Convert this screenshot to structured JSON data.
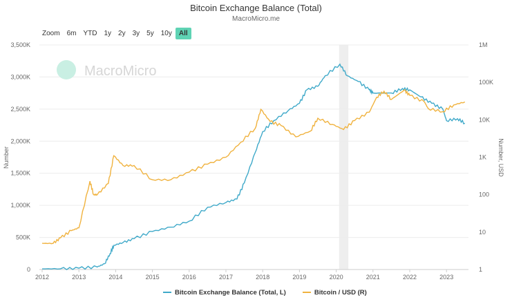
{
  "title": "Bitcoin Exchange Balance (Total)",
  "subtitle": "MacroMicro.me",
  "watermark": "MacroMicro",
  "zoom": {
    "label": "Zoom",
    "options": [
      "6m",
      "YTD",
      "1y",
      "2y",
      "3y",
      "5y",
      "10y",
      "All"
    ],
    "selected": "All"
  },
  "chart_data": {
    "type": "line",
    "title": "Bitcoin Exchange Balance (Total)",
    "ylabel": "Number",
    "y2label": "Number, USD",
    "xlim": [
      2011.93,
      2023.62
    ],
    "ylim": [
      0,
      3500000
    ],
    "y2lim": [
      1,
      1000000
    ],
    "y2scale": "log",
    "xticks": [
      "2012",
      "2013",
      "2014",
      "2015",
      "2016",
      "2017",
      "2018",
      "2019",
      "2020",
      "2021",
      "2022",
      "2023"
    ],
    "yticks": [
      "0",
      "500K",
      "1,000K",
      "1,500K",
      "2,000K",
      "2,500K",
      "3,000K",
      "3,500K"
    ],
    "y2ticks": [
      "1",
      "10",
      "100",
      "1K",
      "10K",
      "100K",
      "1M"
    ],
    "grid": true,
    "legend": "bottom",
    "shaded_band": [
      2020.08,
      2020.33
    ],
    "series": [
      {
        "name": "Bitcoin Exchange Balance (Total, L)",
        "color": "#3fa9c9",
        "axis": "left",
        "x": [
          2012.0,
          2012.5,
          2013.0,
          2013.5,
          2013.7,
          2013.85,
          2013.95,
          2014.2,
          2014.5,
          2015.0,
          2015.5,
          2016.0,
          2016.5,
          2017.0,
          2017.3,
          2017.5,
          2017.8,
          2018.0,
          2018.3,
          2018.7,
          2019.0,
          2019.2,
          2019.5,
          2019.7,
          2020.1,
          2020.3,
          2020.6,
          2020.9,
          2021.0,
          2021.5,
          2021.8,
          2022.0,
          2022.3,
          2022.6,
          2022.9,
          2023.0,
          2023.3,
          2023.5
        ],
        "y": [
          10000,
          12000,
          20000,
          40000,
          90000,
          250000,
          377000,
          420000,
          480000,
          593000,
          660000,
          754000,
          970000,
          1045000,
          1100000,
          1350000,
          1830000,
          2150000,
          2320000,
          2480000,
          2590000,
          2800000,
          2855000,
          3020000,
          3200000,
          3020000,
          2930000,
          2800000,
          2750000,
          2750000,
          2820000,
          2800000,
          2690000,
          2590000,
          2500000,
          2320000,
          2350000,
          2280000
        ]
      },
      {
        "name": "Bitcoin / USD (R)",
        "color": "#f0b23e",
        "axis": "right",
        "x": [
          2012.0,
          2012.3,
          2012.5,
          2012.8,
          2013.0,
          2013.3,
          2013.4,
          2013.5,
          2013.8,
          2013.95,
          2014.2,
          2014.5,
          2015.0,
          2015.5,
          2016.0,
          2016.5,
          2017.0,
          2017.4,
          2017.8,
          2017.95,
          2018.2,
          2018.5,
          2018.9,
          2019.3,
          2019.5,
          2019.9,
          2020.2,
          2020.5,
          2020.9,
          2021.1,
          2021.3,
          2021.5,
          2021.85,
          2022.0,
          2022.4,
          2022.5,
          2022.9,
          2023.2,
          2023.5
        ],
        "y": [
          5,
          5,
          7,
          11,
          13,
          230,
          100,
          100,
          200,
          1100,
          600,
          600,
          250,
          250,
          400,
          650,
          1000,
          2500,
          6000,
          19000,
          9000,
          7000,
          3500,
          5000,
          11000,
          7500,
          5500,
          9500,
          16000,
          40000,
          58000,
          35000,
          62000,
          45000,
          30000,
          20000,
          16500,
          25000,
          30000
        ]
      }
    ]
  }
}
